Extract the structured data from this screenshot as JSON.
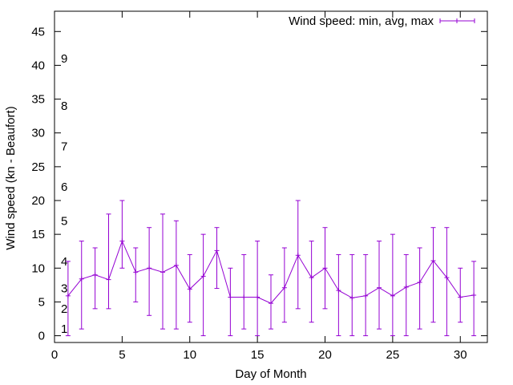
{
  "chart_data": {
    "type": "line",
    "xlabel": "Day of Month",
    "ylabel": "Wind speed (kn - Beaufort)",
    "xlim": [
      0,
      32
    ],
    "ylim": [
      -1,
      48
    ],
    "xticks": [
      0,
      5,
      10,
      15,
      20,
      25,
      30
    ],
    "yticks": [
      0,
      5,
      10,
      15,
      20,
      25,
      30,
      35,
      40,
      45
    ],
    "grid": false,
    "legend_position": "top-right",
    "line_color": "#9400d3",
    "series": [
      {
        "name": "Wind speed: min, avg, max",
        "x": [
          1,
          2,
          3,
          4,
          5,
          6,
          7,
          8,
          9,
          10,
          11,
          12,
          13,
          14,
          15,
          16,
          17,
          18,
          19,
          20,
          21,
          22,
          23,
          24,
          25,
          26,
          27,
          28,
          29,
          30,
          31
        ],
        "avg": [
          5.9,
          8.4,
          9,
          8.3,
          14,
          9.4,
          10,
          9.4,
          10.4,
          6.9,
          8.8,
          12.6,
          5.7,
          5.7,
          5.7,
          4.8,
          7.1,
          11.9,
          8.6,
          10,
          6.7,
          5.6,
          5.9,
          7.1,
          5.9,
          7.2,
          7.9,
          11.1,
          8.6,
          5.7,
          6
        ],
        "min": [
          0,
          1,
          4,
          4,
          10,
          5,
          3,
          1,
          1,
          2,
          0,
          7,
          0,
          1,
          0,
          1,
          2,
          4,
          2,
          4,
          0,
          0,
          0,
          1,
          0,
          0,
          1,
          2,
          0,
          2,
          0
        ],
        "max": [
          11,
          14,
          13,
          18,
          20,
          13,
          16,
          18,
          17,
          12,
          15,
          16,
          10,
          12,
          14,
          9,
          13,
          20,
          14,
          16,
          12,
          12,
          12,
          14,
          15,
          12,
          13,
          16,
          16,
          10,
          11
        ]
      }
    ],
    "beaufort_scale": [
      {
        "label": "1",
        "value": 1
      },
      {
        "label": "2",
        "value": 4
      },
      {
        "label": "3",
        "value": 7
      },
      {
        "label": "4",
        "value": 11
      },
      {
        "label": "5",
        "value": 17
      },
      {
        "label": "6",
        "value": 22
      },
      {
        "label": "7",
        "value": 28
      },
      {
        "label": "8",
        "value": 34
      },
      {
        "label": "9",
        "value": 41
      }
    ]
  }
}
